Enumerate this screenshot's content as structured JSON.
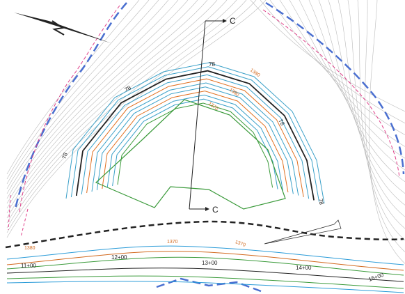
{
  "section": {
    "start_label": "C",
    "end_label": "C"
  },
  "contour_labels": [
    "78",
    "78",
    "78",
    "78",
    "78"
  ],
  "elevation_labels": [
    "1380",
    "1380",
    "1370",
    "1370",
    "1370",
    "1380"
  ],
  "stations": [
    "11+00",
    "12+00",
    "13+00",
    "14+00",
    "15+00"
  ]
}
